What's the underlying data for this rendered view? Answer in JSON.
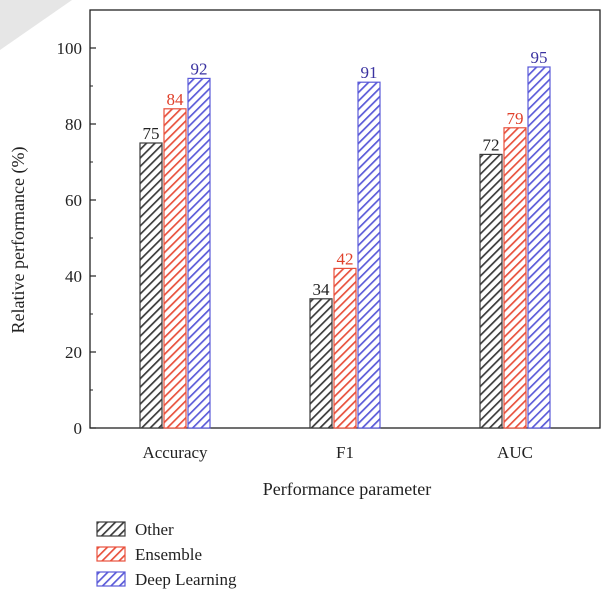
{
  "chart_data": {
    "type": "bar",
    "categories": [
      "Accuracy",
      "F1",
      "AUC"
    ],
    "series": [
      {
        "name": "Other",
        "values": [
          75,
          34,
          72
        ],
        "color": "#3a3a3a",
        "label_color": "#222222"
      },
      {
        "name": "Ensemble",
        "values": [
          84,
          42,
          79
        ],
        "color": "#e8503c",
        "label_color": "#e0402a"
      },
      {
        "name": "Deep Learning",
        "values": [
          92,
          91,
          95
        ],
        "color": "#5a5ad8",
        "label_color": "#3a32a0"
      }
    ],
    "xlabel": "Performance parameter",
    "ylabel": "Relative performance (%)",
    "ylim": [
      0,
      110
    ],
    "yticks": [
      0,
      20,
      40,
      60,
      80,
      100
    ],
    "grid": false,
    "legend_position": "bottom-left"
  }
}
